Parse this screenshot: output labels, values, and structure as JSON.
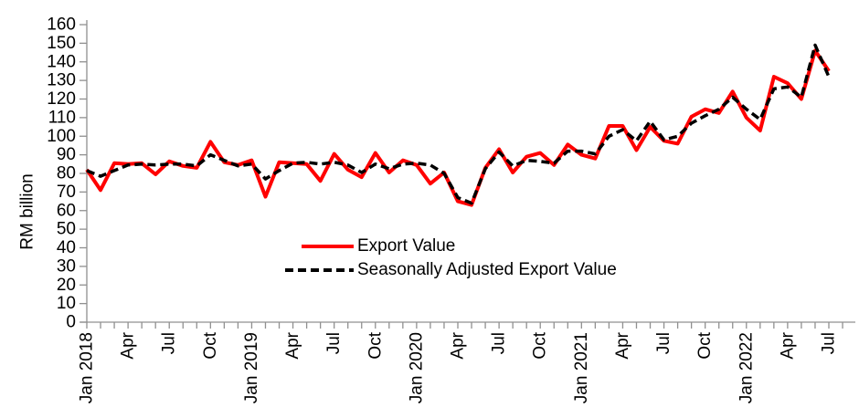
{
  "chart_data": {
    "type": "line",
    "title": "",
    "xlabel": "",
    "ylabel": "RM billion",
    "ylim": [
      0,
      160
    ],
    "ytick_step": 10,
    "grid": false,
    "legend_position": "center-inside",
    "x_tick_labels": [
      "Jan 2018",
      "Apr",
      "Jul",
      "Oct",
      "Jan 2019",
      "Apr",
      "Jul",
      "Oct",
      "Jan 2020",
      "Apr",
      "Jul",
      "Oct",
      "Jan 2021",
      "Apr",
      "Jul",
      "Oct",
      "Jan 2022",
      "Apr",
      "Jul"
    ],
    "categories": [
      "Jan 2018",
      "Feb 2018",
      "Mar 2018",
      "Apr 2018",
      "May 2018",
      "Jun 2018",
      "Jul 2018",
      "Aug 2018",
      "Sep 2018",
      "Oct 2018",
      "Nov 2018",
      "Dec 2018",
      "Jan 2019",
      "Feb 2019",
      "Mar 2019",
      "Apr 2019",
      "May 2019",
      "Jun 2019",
      "Jul 2019",
      "Aug 2019",
      "Sep 2019",
      "Oct 2019",
      "Nov 2019",
      "Dec 2019",
      "Jan 2020",
      "Feb 2020",
      "Mar 2020",
      "Apr 2020",
      "May 2020",
      "Jun 2020",
      "Jul 2020",
      "Aug 2020",
      "Sep 2020",
      "Oct 2020",
      "Nov 2020",
      "Dec 2020",
      "Jan 2021",
      "Feb 2021",
      "Mar 2021",
      "Apr 2021",
      "May 2021",
      "Jun 2021",
      "Jul 2021",
      "Aug 2021",
      "Sep 2021",
      "Oct 2021",
      "Nov 2021",
      "Dec 2021",
      "Jan 2022",
      "Feb 2022",
      "Mar 2022",
      "Apr 2022",
      "May 2022",
      "Jun 2022",
      "Jul 2022"
    ],
    "series": [
      {
        "name": "Export Value",
        "color": "#FF0000",
        "style": "solid",
        "values": [
          82,
          71,
          85.5,
          85,
          85.5,
          79.5,
          86.5,
          84,
          83,
          97,
          86,
          84.5,
          87,
          67.5,
          86,
          85.5,
          85,
          76,
          90.5,
          82,
          78,
          91,
          80.5,
          87,
          84.5,
          74.5,
          80.5,
          65,
          63,
          83,
          93,
          80.5,
          89,
          91,
          84.5,
          95.5,
          90,
          88,
          105.5,
          105.5,
          92.5,
          105,
          97.5,
          96,
          110.5,
          114.5,
          112.5,
          124,
          110,
          103,
          132,
          128.5,
          120,
          146,
          135
        ]
      },
      {
        "name": "Seasonally Adjusted Export Value",
        "color": "#000000",
        "style": "dashed",
        "values": [
          81.5,
          78.5,
          81.5,
          84.5,
          85,
          84.5,
          85,
          85,
          84,
          90,
          87,
          84,
          85,
          77,
          81.5,
          85.5,
          86,
          85,
          86,
          84.5,
          80.5,
          85,
          82.5,
          85,
          85.5,
          84.5,
          80,
          67,
          64,
          82.5,
          91.5,
          84,
          87,
          86.5,
          85.5,
          92,
          92,
          90.5,
          100,
          103.5,
          97.5,
          108,
          98,
          100,
          107,
          111,
          114.5,
          121,
          114.5,
          109,
          125.5,
          126.5,
          121,
          149,
          132
        ]
      }
    ],
    "axis_color": "#909090",
    "text_color": "#000000"
  }
}
